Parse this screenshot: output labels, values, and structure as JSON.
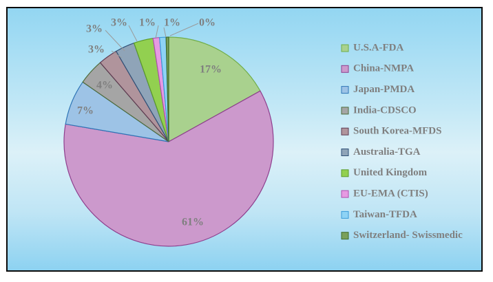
{
  "chart_data": {
    "type": "pie",
    "title": "",
    "legend_position": "right",
    "slices": [
      {
        "label": "U.S.A-FDA",
        "value": 17,
        "display": "17%",
        "color": "#a9d18e",
        "stroke": "#70ad47"
      },
      {
        "label": "China-NMPA",
        "value": 61,
        "display": "61%",
        "color": "#cc99cc",
        "stroke": "#8e3f8e"
      },
      {
        "label": "Japan-PMDA",
        "value": 7,
        "display": "7%",
        "color": "#9dc3e6",
        "stroke": "#2e75b6"
      },
      {
        "label": "India-CDSCO",
        "value": 4,
        "display": "4%",
        "color": "#a5a5a5",
        "stroke": "#4e6b3a"
      },
      {
        "label": "South Korea-MFDS",
        "value": 3,
        "display": "3%",
        "color": "#b0949c",
        "stroke": "#5e3a52"
      },
      {
        "label": "Australia-TGA",
        "value": 3,
        "display": "3%",
        "color": "#8fa4b8",
        "stroke": "#2e5077"
      },
      {
        "label": "United Kingdom",
        "value": 3,
        "display": "3%",
        "color": "#92d050",
        "stroke": "#5a9a2a"
      },
      {
        "label": "EU-EMA (CTIS)",
        "value": 1,
        "display": "1%",
        "color": "#e69ae2",
        "stroke": "#b04fad"
      },
      {
        "label": "Taiwan-TFDA",
        "value": 1,
        "display": "1%",
        "color": "#8ed3f5",
        "stroke": "#3a9ad9"
      },
      {
        "label": "Switzerland- Swissmedic",
        "value": 0.4,
        "display": "0%",
        "color": "#7aa05a",
        "stroke": "#3f6b2a"
      }
    ]
  }
}
